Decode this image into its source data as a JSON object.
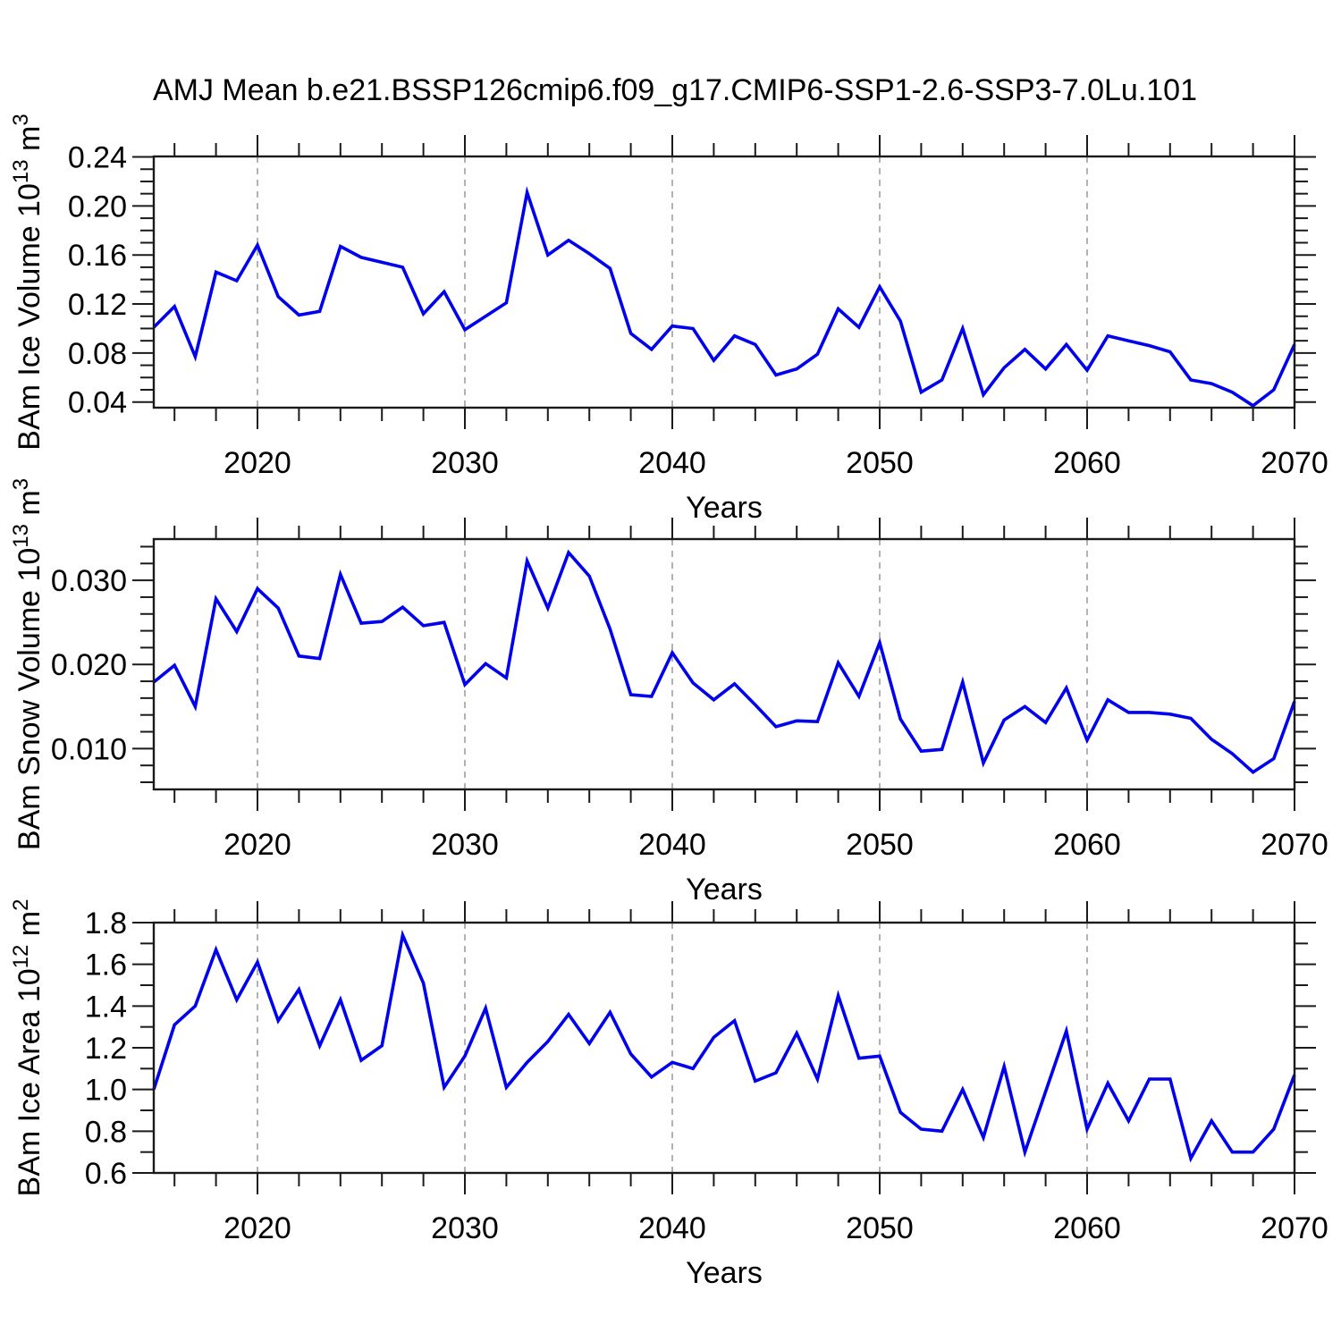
{
  "title": "AMJ Mean b.e21.BSSP126cmip6.f09_g17.CMIP6-SSP1-2.6-SSP3-7.0Lu.101",
  "style": {
    "line_color": "#0000ee",
    "axis_color": "#1a1a1a",
    "grid_color": "#999999",
    "background": "#ffffff"
  },
  "chart_data": [
    {
      "type": "line",
      "name": "bam-ice-volume",
      "ylabel_text": "BAm Ice Volume 10^13 m^3",
      "ylabel_parts": [
        {
          "t": "BAm Ice Volume 10"
        },
        {
          "t": "13",
          "sup": true
        },
        {
          "t": " m"
        },
        {
          "t": "3",
          "sup": true
        }
      ],
      "xlabel": "Years",
      "xlim": [
        2015,
        2070
      ],
      "ylim": [
        0.0354,
        0.2404
      ],
      "xticks": [
        2020,
        2030,
        2040,
        2050,
        2060,
        2070
      ],
      "xtick_labels": [
        "2020",
        "2030",
        "2040",
        "2050",
        "2060",
        "2070"
      ],
      "xminor_step": 2,
      "grid_years": [
        2020,
        2030,
        2040,
        2050,
        2060
      ],
      "yticks": [
        0.04,
        0.08,
        0.12,
        0.16,
        0.2,
        0.24
      ],
      "ytick_labels": [
        "0.04",
        "0.08",
        "0.12",
        "0.16",
        "0.20",
        "0.24"
      ],
      "yminor_step": 0.01,
      "x": [
        2015,
        2016,
        2017,
        2018,
        2019,
        2020,
        2021,
        2022,
        2023,
        2024,
        2025,
        2026,
        2027,
        2028,
        2029,
        2030,
        2031,
        2032,
        2033,
        2034,
        2035,
        2036,
        2037,
        2038,
        2039,
        2040,
        2041,
        2042,
        2043,
        2044,
        2045,
        2046,
        2047,
        2048,
        2049,
        2050,
        2051,
        2052,
        2053,
        2054,
        2055,
        2056,
        2057,
        2058,
        2059,
        2060,
        2061,
        2062,
        2063,
        2064,
        2065,
        2066,
        2067,
        2068,
        2069,
        2070
      ],
      "values": [
        0.101,
        0.118,
        0.077,
        0.146,
        0.139,
        0.168,
        0.126,
        0.111,
        0.114,
        0.167,
        0.158,
        0.154,
        0.15,
        0.112,
        0.13,
        0.099,
        0.11,
        0.121,
        0.211,
        0.16,
        0.172,
        0.161,
        0.149,
        0.096,
        0.083,
        0.102,
        0.1,
        0.074,
        0.094,
        0.087,
        0.062,
        0.067,
        0.079,
        0.116,
        0.101,
        0.134,
        0.106,
        0.048,
        0.058,
        0.1,
        0.046,
        0.068,
        0.083,
        0.067,
        0.087,
        0.066,
        0.094,
        0.09,
        0.086,
        0.081,
        0.058,
        0.055,
        0.048,
        0.037,
        0.05,
        0.087
      ]
    },
    {
      "type": "line",
      "name": "bam-snow-volume",
      "ylabel_text": "BAm Snow Volume 10^13 m^3",
      "ylabel_parts": [
        {
          "t": "BAm Snow Volume 10"
        },
        {
          "t": "13",
          "sup": true
        },
        {
          "t": " m"
        },
        {
          "t": "3",
          "sup": true
        }
      ],
      "xlabel": "Years",
      "xlim": [
        2015,
        2070
      ],
      "ylim": [
        0.00515,
        0.0349
      ],
      "xticks": [
        2020,
        2030,
        2040,
        2050,
        2060,
        2070
      ],
      "xtick_labels": [
        "2020",
        "2030",
        "2040",
        "2050",
        "2060",
        "2070"
      ],
      "xminor_step": 2,
      "grid_years": [
        2020,
        2030,
        2040,
        2050,
        2060
      ],
      "yticks": [
        0.01,
        0.02,
        0.03
      ],
      "ytick_labels": [
        "0.010",
        "0.020",
        "0.030"
      ],
      "yminor_step": 0.002,
      "x": [
        2015,
        2016,
        2017,
        2018,
        2019,
        2020,
        2021,
        2022,
        2023,
        2024,
        2025,
        2026,
        2027,
        2028,
        2029,
        2030,
        2031,
        2032,
        2033,
        2034,
        2035,
        2036,
        2037,
        2038,
        2039,
        2040,
        2041,
        2042,
        2043,
        2044,
        2045,
        2046,
        2047,
        2048,
        2049,
        2050,
        2051,
        2052,
        2053,
        2054,
        2055,
        2056,
        2057,
        2058,
        2059,
        2060,
        2061,
        2062,
        2063,
        2064,
        2065,
        2066,
        2067,
        2068,
        2069,
        2070
      ],
      "values": [
        0.0179,
        0.0199,
        0.015,
        0.0278,
        0.0239,
        0.029,
        0.0267,
        0.021,
        0.0207,
        0.0307,
        0.0249,
        0.0251,
        0.0268,
        0.0246,
        0.025,
        0.0176,
        0.0201,
        0.0184,
        0.0323,
        0.0267,
        0.0333,
        0.0305,
        0.0242,
        0.0164,
        0.0162,
        0.0214,
        0.0178,
        0.0158,
        0.0177,
        0.0152,
        0.0126,
        0.0133,
        0.0132,
        0.0202,
        0.0162,
        0.0226,
        0.0135,
        0.0097,
        0.0099,
        0.0179,
        0.0083,
        0.0134,
        0.015,
        0.0131,
        0.0172,
        0.011,
        0.0158,
        0.0143,
        0.0143,
        0.0141,
        0.0136,
        0.0111,
        0.0094,
        0.0072,
        0.0088,
        0.0156
      ]
    },
    {
      "type": "line",
      "name": "bam-ice-area",
      "ylabel_text": "BAm Ice Area 10^12 m^2",
      "ylabel_parts": [
        {
          "t": "BAm Ice Area 10"
        },
        {
          "t": "12",
          "sup": true
        },
        {
          "t": " m"
        },
        {
          "t": "2",
          "sup": true
        }
      ],
      "xlabel": "Years",
      "xlim": [
        2015,
        2070
      ],
      "ylim": [
        0.6,
        1.8
      ],
      "xticks": [
        2020,
        2030,
        2040,
        2050,
        2060,
        2070
      ],
      "xtick_labels": [
        "2020",
        "2030",
        "2040",
        "2050",
        "2060",
        "2070"
      ],
      "xminor_step": 2,
      "grid_years": [
        2020,
        2030,
        2040,
        2050,
        2060
      ],
      "yticks": [
        0.6,
        0.8,
        1.0,
        1.2,
        1.4,
        1.6,
        1.8
      ],
      "ytick_labels": [
        "0.6",
        "0.8",
        "1.0",
        "1.2",
        "1.4",
        "1.6",
        "1.8"
      ],
      "yminor_step": 0.1,
      "x": [
        2015,
        2016,
        2017,
        2018,
        2019,
        2020,
        2021,
        2022,
        2023,
        2024,
        2025,
        2026,
        2027,
        2028,
        2029,
        2030,
        2031,
        2032,
        2033,
        2034,
        2035,
        2036,
        2037,
        2038,
        2039,
        2040,
        2041,
        2042,
        2043,
        2044,
        2045,
        2046,
        2047,
        2048,
        2049,
        2050,
        2051,
        2052,
        2053,
        2054,
        2055,
        2056,
        2057,
        2058,
        2059,
        2060,
        2061,
        2062,
        2063,
        2064,
        2065,
        2066,
        2067,
        2068,
        2069,
        2070
      ],
      "values": [
        1.0,
        1.31,
        1.4,
        1.67,
        1.43,
        1.61,
        1.33,
        1.48,
        1.21,
        1.43,
        1.14,
        1.21,
        1.74,
        1.51,
        1.01,
        1.16,
        1.39,
        1.01,
        1.13,
        1.23,
        1.36,
        1.22,
        1.37,
        1.17,
        1.06,
        1.13,
        1.1,
        1.25,
        1.33,
        1.04,
        1.08,
        1.27,
        1.05,
        1.45,
        1.15,
        1.16,
        0.89,
        0.81,
        0.8,
        1.0,
        0.77,
        1.11,
        0.7,
        0.99,
        1.28,
        0.81,
        1.03,
        0.85,
        1.05,
        1.05,
        0.67,
        0.85,
        0.7,
        0.7,
        0.81,
        1.07
      ]
    }
  ]
}
